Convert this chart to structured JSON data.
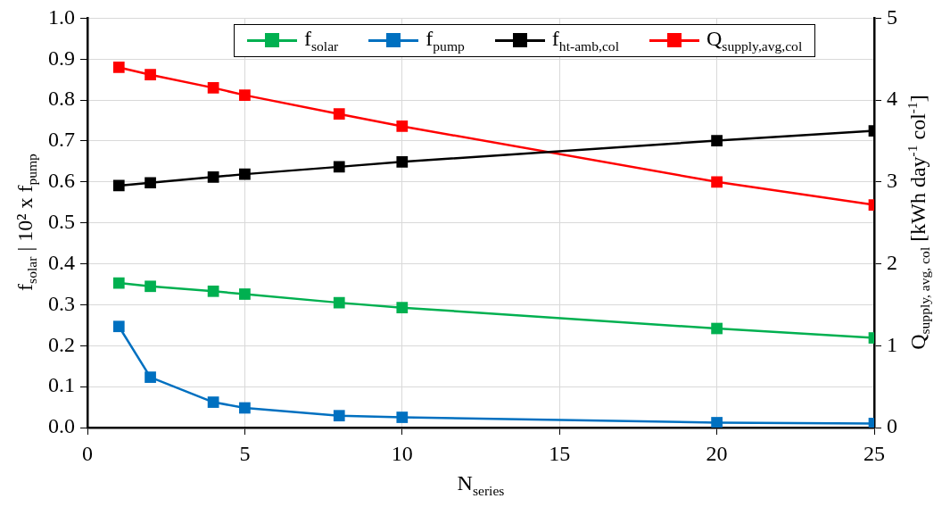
{
  "chart_data": {
    "type": "line",
    "xlabel": "N$_{series}$",
    "ylabel": "f$_{solar}$ | 10² x f$_{pump}$",
    "y2label": "Q$_{supply, avg, col}$ [kWh day$^{-1}$ col$^{-1}$]",
    "x": [
      1,
      2,
      4,
      5,
      8,
      10,
      20,
      25
    ],
    "series": [
      {
        "name": "f$_{solar}$",
        "color": "#00b050",
        "values": [
          0.353,
          0.345,
          0.333,
          0.326,
          0.305,
          0.293,
          0.242,
          0.219
        ]
      },
      {
        "name": "f$_{pump}$",
        "color": "#0070c0",
        "values": [
          0.247,
          0.123,
          0.062,
          0.048,
          0.029,
          0.025,
          0.012,
          0.01
        ]
      },
      {
        "name": "f$_{ht-amb,col}$",
        "color": "#000000",
        "values": [
          0.591,
          0.598,
          0.612,
          0.619,
          0.637,
          0.649,
          0.701,
          0.725
        ]
      },
      {
        "name": "Q$_{supply,avg,col}$",
        "color": "#ff0000",
        "axis": "y2",
        "values": [
          4.4,
          4.31,
          4.15,
          4.06,
          3.83,
          3.68,
          3.0,
          2.72
        ]
      }
    ],
    "xlim": [
      0,
      25
    ],
    "xticks": [
      0,
      5,
      10,
      15,
      20,
      25
    ],
    "ylim": [
      0,
      1
    ],
    "yticks": [
      {
        "value": 0,
        "label": "0.0"
      },
      0.1,
      0.2,
      0.3,
      0.4,
      0.5,
      0.6,
      0.7,
      0.8,
      0.9,
      {
        "value": 1,
        "label": "1.0"
      }
    ],
    "y2lim": [
      0,
      5
    ],
    "y2ticks": [
      0,
      1,
      2,
      3,
      4,
      5
    ],
    "grid": true,
    "legend": "top",
    "marker": "square",
    "line_style": "solid"
  }
}
